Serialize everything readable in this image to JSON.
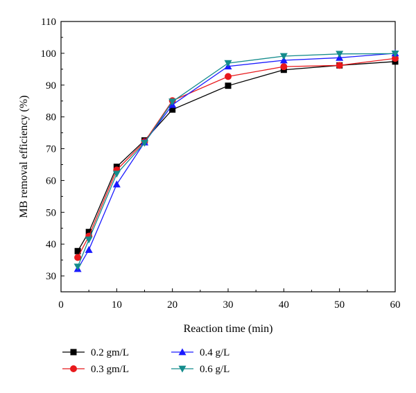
{
  "chart_data": {
    "type": "line",
    "title": "",
    "xlabel": "Reaction time (min)",
    "ylabel": "MB removal efficiency (%)",
    "xlim": [
      0,
      60
    ],
    "ylim": [
      25,
      110
    ],
    "xticks": [
      0,
      10,
      20,
      30,
      40,
      50,
      60
    ],
    "yticks": [
      30,
      40,
      50,
      60,
      70,
      80,
      90,
      100,
      110
    ],
    "grid": false,
    "legend_position": "bottom",
    "x": [
      3,
      5,
      10,
      15,
      20,
      30,
      40,
      50,
      60
    ],
    "series": [
      {
        "name": "0.2 gm/L",
        "color": "#000000",
        "marker": "square",
        "values": [
          37.8,
          43.8,
          64.3,
          72.6,
          82.3,
          89.8,
          94.8,
          96.2,
          97.4
        ]
      },
      {
        "name": "0.3 gm/L",
        "color": "#e8191c",
        "marker": "circle",
        "values": [
          35.8,
          42.5,
          63.3,
          72.2,
          85.1,
          92.7,
          95.8,
          96.2,
          98.4
        ]
      },
      {
        "name": "0.4 g/L",
        "color": "#1a1aff",
        "marker": "triangle-up",
        "values": [
          32.2,
          38.2,
          58.8,
          72.0,
          83.8,
          95.9,
          97.8,
          98.6,
          100.0
        ]
      },
      {
        "name": "0.6 g/L",
        "color": "#148c8c",
        "marker": "triangle-down",
        "values": [
          32.9,
          41.4,
          62.1,
          71.8,
          84.8,
          96.9,
          99.1,
          99.8,
          99.9
        ]
      }
    ]
  }
}
